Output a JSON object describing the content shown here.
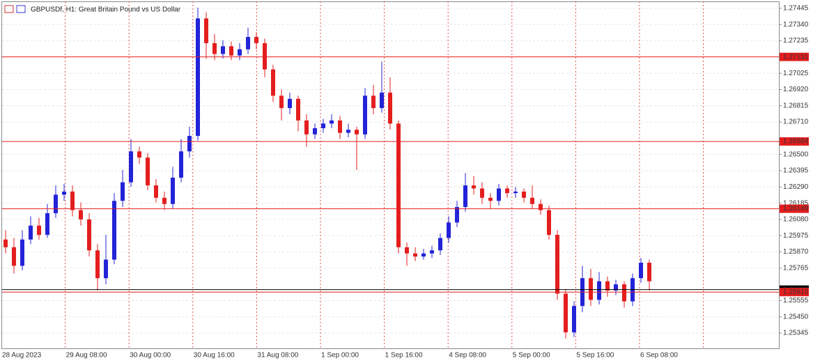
{
  "chart_data": {
    "type": "candlestick",
    "title": "GBPUSDf, H1:  Great Britain Pound vs US Dollar",
    "up_color": "#2323d8",
    "down_color": "#e41e1e",
    "grid": true,
    "ylim": [
      1.25246,
      1.2749
    ],
    "yticks": [
      1.27445,
      {
        "value": 1.2734,
        "label": "1.27340"
      },
      1.27235,
      1.27025,
      {
        "value": 1.2692,
        "label": "1.26920"
      },
      1.26815,
      {
        "value": 1.2671,
        "label": "1.26710"
      },
      {
        "value": 1.265,
        "label": "1.26500"
      },
      1.26395,
      {
        "value": 1.2629,
        "label": "1.26290"
      },
      1.26185,
      {
        "value": 1.2608,
        "label": "1.26080"
      },
      1.25975,
      {
        "value": 1.2587,
        "label": "1.25870"
      },
      1.25765,
      1.25555,
      {
        "value": 1.2545,
        "label": "1.25450"
      },
      1.25345
    ],
    "x_labels": [
      "28 Aug 2023",
      "29 Aug 08:00",
      "30 Aug 00:00",
      "30 Aug 16:00",
      "31 Aug 08:00",
      "1 Sep 00:00",
      "1 Sep 16:00",
      "4 Sep 08:00",
      "5 Sep 00:00",
      "5 Sep 16:00",
      "6 Sep 08:00"
    ],
    "levels": [
      1.27131,
      1.26584,
      1.26149,
      {
        "value": 1.2561,
        "label": "1.25610"
      }
    ],
    "bid": 1.25626,
    "open": [
      1.2595,
      1.259,
      1.2578,
      1.2595,
      1.2604,
      1.2598,
      1.2612,
      1.2624,
      1.2626,
      1.2614,
      1.2608,
      1.2588,
      1.257,
      1.2582,
      1.262,
      1.2632,
      1.2652,
      1.2648,
      1.263,
      1.2622,
      1.2618,
      1.2635,
      1.2652,
      1.2662,
      1.2738,
      1.2722,
      1.2715,
      1.272,
      1.2714,
      1.2718,
      1.2726,
      1.2722,
      1.2705,
      1.2688,
      1.268,
      1.2686,
      1.2672,
      1.2663,
      1.2667,
      1.267,
      1.2672,
      1.2664,
      1.2666,
      1.2663,
      1.2688,
      1.268,
      1.269,
      1.267,
      1.259,
      1.2586,
      1.2584,
      1.2586,
      1.2588,
      1.2596,
      1.2606,
      1.2616,
      1.263,
      1.2628,
      1.2622,
      1.262,
      1.2628,
      1.2625,
      1.2626,
      1.2622,
      1.2618,
      1.2614,
      1.2598,
      1.256,
      1.2535,
      1.2552,
      1.257,
      1.2556,
      1.2568,
      1.2562,
      1.2566,
      1.2555,
      1.257,
      1.258
    ],
    "high": [
      1.2601,
      1.2596,
      1.2601,
      1.261,
      1.2609,
      1.2618,
      1.263,
      1.2631,
      1.263,
      1.2619,
      1.2612,
      1.2592,
      1.2598,
      1.2625,
      1.264,
      1.266,
      1.2655,
      1.2651,
      1.2634,
      1.2626,
      1.2642,
      1.266,
      1.2668,
      1.2745,
      1.2742,
      1.2728,
      1.2724,
      1.2723,
      1.2722,
      1.2732,
      1.2729,
      1.2725,
      1.2708,
      1.2692,
      1.269,
      1.2688,
      1.2676,
      1.267,
      1.2673,
      1.2676,
      1.2675,
      1.267,
      1.2668,
      1.2693,
      1.2695,
      1.271,
      1.27,
      1.2672,
      1.2593,
      1.259,
      1.2589,
      1.2591,
      1.2599,
      1.261,
      1.262,
      1.2638,
      1.2636,
      1.2632,
      1.2625,
      1.2631,
      1.263,
      1.2629,
      1.2628,
      1.263,
      1.2621,
      1.2617,
      1.2601,
      1.2563,
      1.2555,
      1.2578,
      1.2576,
      1.2574,
      1.2571,
      1.2569,
      1.2568,
      1.2573,
      1.2583,
      1.2582
    ],
    "low": [
      1.2586,
      1.2573,
      1.2575,
      1.2592,
      1.2595,
      1.2596,
      1.2609,
      1.262,
      1.261,
      1.2604,
      1.2584,
      1.2562,
      1.2566,
      1.2579,
      1.2616,
      1.2629,
      1.2644,
      1.2627,
      1.2619,
      1.2614,
      1.2615,
      1.2632,
      1.2648,
      1.2659,
      1.2712,
      1.2711,
      1.2712,
      1.2711,
      1.2711,
      1.2715,
      1.2718,
      1.27,
      1.2684,
      1.2672,
      1.2676,
      1.2665,
      1.2655,
      1.266,
      1.2664,
      1.2667,
      1.266,
      1.2661,
      1.264,
      1.266,
      1.2676,
      1.2677,
      1.2666,
      1.2586,
      1.2578,
      1.2581,
      1.2582,
      1.2583,
      1.2585,
      1.2593,
      1.2603,
      1.2613,
      1.2624,
      1.2618,
      1.2615,
      1.2617,
      1.2622,
      1.2622,
      1.2619,
      1.2615,
      1.2611,
      1.2595,
      1.2556,
      1.2531,
      1.2532,
      1.2548,
      1.2552,
      1.2553,
      1.2558,
      1.2559,
      1.2551,
      1.2552,
      1.2567,
      1.2562
    ],
    "close": [
      1.259,
      1.2578,
      1.2595,
      1.2604,
      1.2598,
      1.2612,
      1.2624,
      1.2626,
      1.2614,
      1.2608,
      1.2588,
      1.257,
      1.2582,
      1.262,
      1.2632,
      1.2652,
      1.2648,
      1.263,
      1.2622,
      1.2618,
      1.2635,
      1.2652,
      1.2662,
      1.2738,
      1.2722,
      1.2715,
      1.272,
      1.2714,
      1.2718,
      1.2726,
      1.2722,
      1.2705,
      1.2688,
      1.268,
      1.2686,
      1.2672,
      1.2663,
      1.2667,
      1.267,
      1.2672,
      1.2664,
      1.2666,
      1.2663,
      1.2688,
      1.268,
      1.269,
      1.267,
      1.259,
      1.2586,
      1.2584,
      1.2586,
      1.2588,
      1.2596,
      1.2606,
      1.2616,
      1.263,
      1.2628,
      1.2622,
      1.262,
      1.2628,
      1.2625,
      1.2626,
      1.2622,
      1.2618,
      1.2614,
      1.2598,
      1.256,
      1.2535,
      1.2552,
      1.257,
      1.2556,
      1.2568,
      1.2562,
      1.2566,
      1.2555,
      1.257,
      1.258,
      1.2568
    ]
  }
}
